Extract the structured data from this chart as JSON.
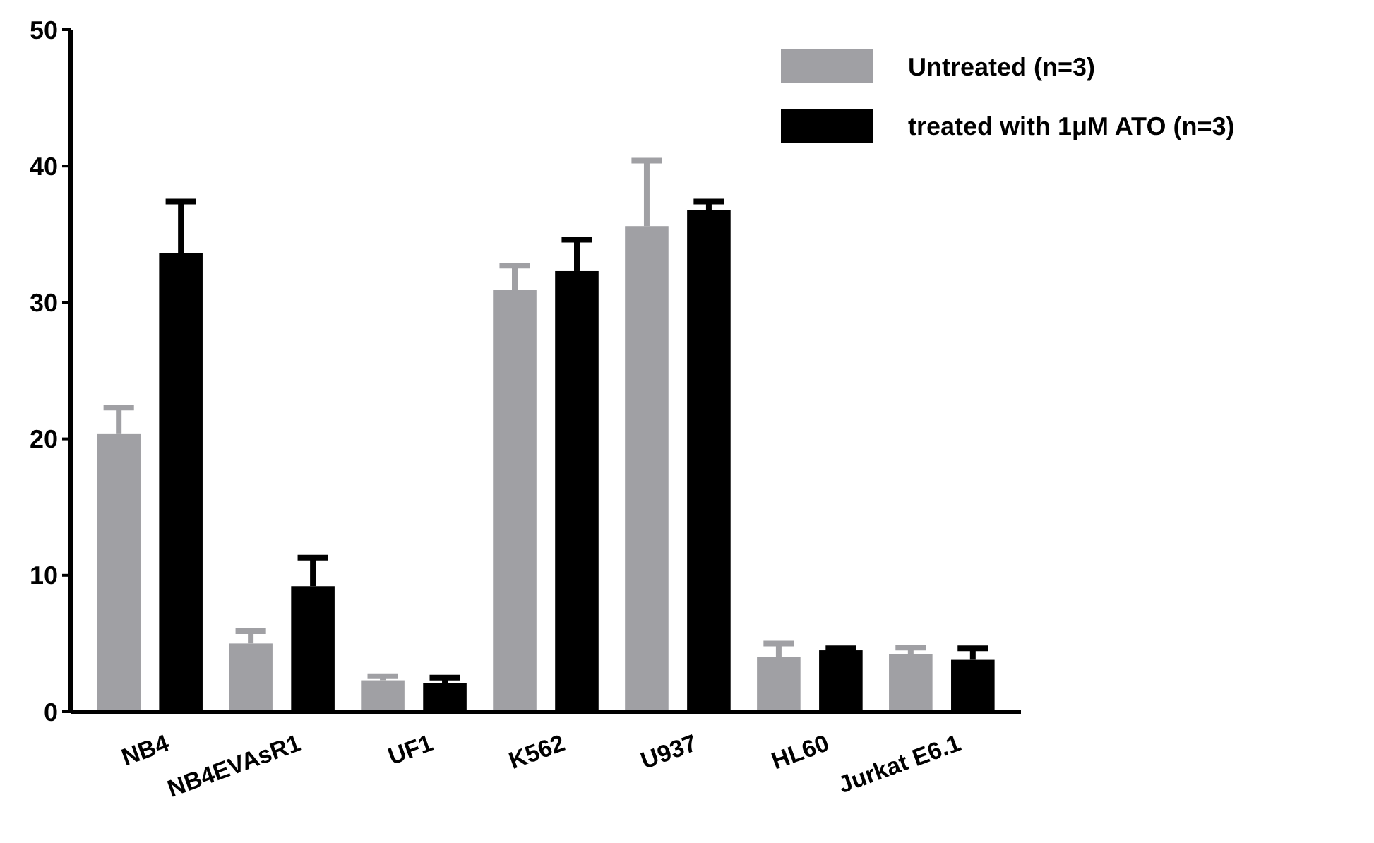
{
  "chart_data": {
    "type": "bar",
    "categories": [
      "NB4",
      "NB4EVAsR1",
      "UF1",
      "K562",
      "U937",
      "HL60",
      "Jurkat E6.1"
    ],
    "series": [
      {
        "name": "Untreated (n=3)",
        "color": "#a0a0a4",
        "values": [
          20.4,
          5.0,
          2.3,
          30.9,
          35.6,
          4.0,
          4.2
        ],
        "errors": [
          [
            20.4,
            22.3
          ],
          [
            5.0,
            5.9
          ],
          [
            2.3,
            2.6
          ],
          [
            30.9,
            32.7
          ],
          [
            35.6,
            40.4
          ],
          [
            4.0,
            5.0
          ],
          [
            4.2,
            4.7
          ]
        ]
      },
      {
        "name": "treated with 1μM ATO (n=3)",
        "color": "#000000",
        "values": [
          33.6,
          9.2,
          2.1,
          32.3,
          36.8,
          4.5,
          3.8
        ],
        "errors": [
          [
            33.6,
            37.4
          ],
          [
            9.2,
            11.3
          ],
          [
            2.1,
            2.5
          ],
          [
            32.3,
            34.6
          ],
          [
            36.8,
            37.4
          ],
          [
            4.5,
            4.65
          ],
          [
            3.8,
            4.65
          ]
        ]
      }
    ],
    "ylim": [
      0,
      50
    ],
    "yticks": [
      0,
      10,
      20,
      30,
      40,
      50
    ],
    "legend": "top right"
  }
}
